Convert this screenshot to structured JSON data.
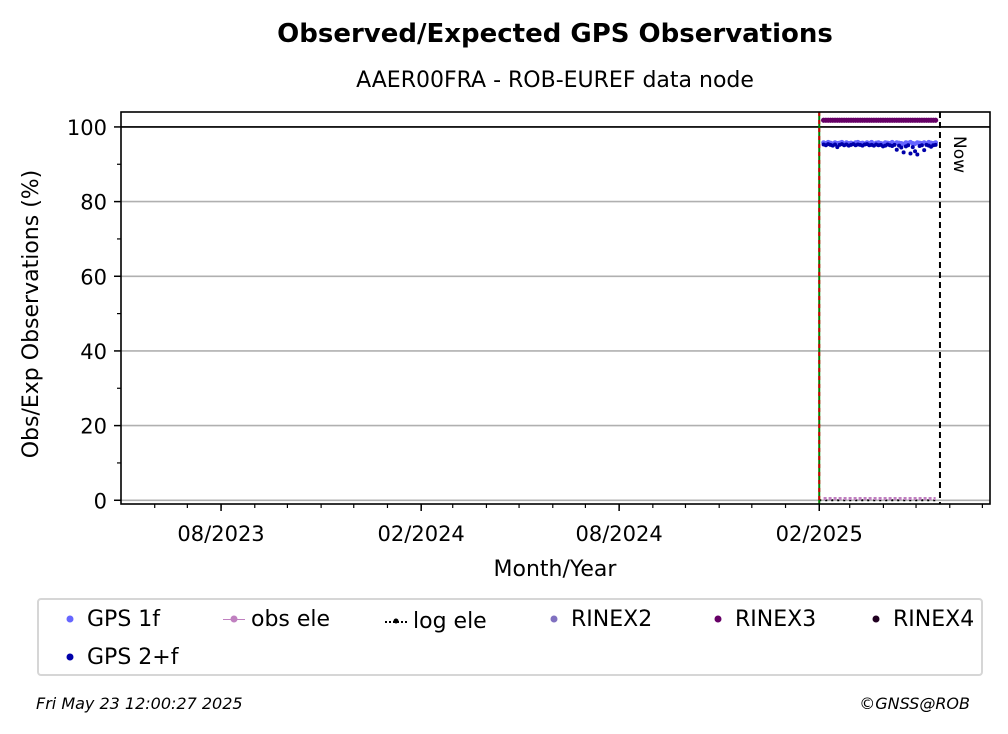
{
  "chart_data": {
    "type": "scatter",
    "title": "Observed/Expected GPS Observations",
    "subtitle": "AAER00FRA - ROB-EUREF data node",
    "xlabel": "Month/Year",
    "ylabel": "Obs/Exp Observations (%)",
    "xlim": [
      "2023-05-01",
      "2025-07-08"
    ],
    "ylim": [
      -1,
      104
    ],
    "grid": "horizontal",
    "legend_position": "bottom",
    "x_ticks": [
      "08/2023",
      "02/2024",
      "08/2024",
      "02/2025"
    ],
    "y_ticks": [
      0,
      20,
      40,
      60,
      80,
      100
    ],
    "reference_line_y": 100,
    "vline_start": {
      "date": "2025-02-01"
    },
    "vline_now": {
      "date": "2025-05-23",
      "label": "Now"
    },
    "series": [
      {
        "name": "GPS 1f",
        "color": "#6666ff",
        "x_range": [
          "2025-02-05",
          "2025-05-19"
        ],
        "values": [
          95.8,
          95.6,
          95.9,
          95.7,
          95.5,
          95.8,
          95.6,
          95.7,
          95.9,
          95.4,
          95.8,
          95.6,
          95.7,
          95.5,
          95.8,
          95.9,
          95.6,
          95.7,
          95.5,
          95.8,
          95.6,
          95.9,
          95.4,
          95.7,
          95.8,
          95.6,
          95.5,
          95.8,
          95.7,
          95.6,
          95.9,
          95.5,
          95.8,
          95.7,
          95.6,
          95.4,
          95.8,
          95.7,
          95.9,
          95.6,
          95.5,
          95.8,
          95.7,
          95.6,
          95.8,
          95.5,
          95.9,
          95.7,
          95.6,
          95.8
        ]
      },
      {
        "name": "obs ele",
        "color": "#c080c0",
        "x_range": [
          "2025-02-05",
          "2025-05-19"
        ],
        "values": [
          0.2,
          0.2,
          0.2,
          0.2,
          0.2,
          0.2,
          0.2,
          0.2,
          0.2,
          0.2
        ]
      },
      {
        "name": "log ele",
        "color": "#000000",
        "x_range": [
          "2025-02-01",
          "2025-05-19"
        ],
        "values": [
          0,
          0,
          0,
          0,
          0,
          0,
          0,
          0,
          0,
          0
        ]
      },
      {
        "name": "RINEX2",
        "color": "#8070c0",
        "x_range": [],
        "values": []
      },
      {
        "name": "RINEX3",
        "color": "#660066",
        "x_range": [
          "2025-02-05",
          "2025-05-19"
        ],
        "values": [
          101.8,
          101.8,
          101.8,
          101.8,
          101.8,
          101.8,
          101.8,
          101.8,
          101.8,
          101.8,
          101.8,
          101.8,
          101.8,
          101.8,
          101.8,
          101.8,
          101.8,
          101.8,
          101.8,
          101.8,
          101.8,
          101.8,
          101.8,
          101.8,
          101.8,
          101.8,
          101.8,
          101.8,
          101.8,
          101.8,
          101.8,
          101.8,
          101.8,
          101.8,
          101.8,
          101.8,
          101.8,
          101.8,
          101.8,
          101.8,
          101.8,
          101.8,
          101.8,
          101.8,
          101.8,
          101.8,
          101.8,
          101.8,
          101.8,
          101.8
        ]
      },
      {
        "name": "RINEX4",
        "color": "#200020",
        "x_range": [],
        "values": []
      },
      {
        "name": "GPS 2+f",
        "color": "#0000aa",
        "x_range": [
          "2025-02-05",
          "2025-05-19"
        ],
        "values": [
          95.3,
          95.1,
          95.4,
          95.2,
          95.0,
          95.3,
          94.6,
          95.2,
          95.4,
          95.1,
          95.3,
          95.0,
          95.2,
          95.4,
          95.1,
          95.3,
          95.2,
          95.0,
          95.3,
          95.4,
          95.1,
          95.2,
          95.0,
          95.3,
          95.1,
          95.2,
          94.8,
          95.0,
          95.3,
          95.1,
          94.9,
          95.2,
          93.9,
          95.0,
          94.5,
          93.2,
          94.8,
          95.1,
          92.9,
          94.6,
          93.5,
          92.6,
          94.9,
          95.1,
          93.8,
          95.2,
          95.0,
          94.7,
          95.1,
          95.2
        ]
      }
    ]
  },
  "footer": {
    "timestamp": "Fri May 23 12:00:27 2025",
    "credit": "©GNSS@ROB"
  }
}
